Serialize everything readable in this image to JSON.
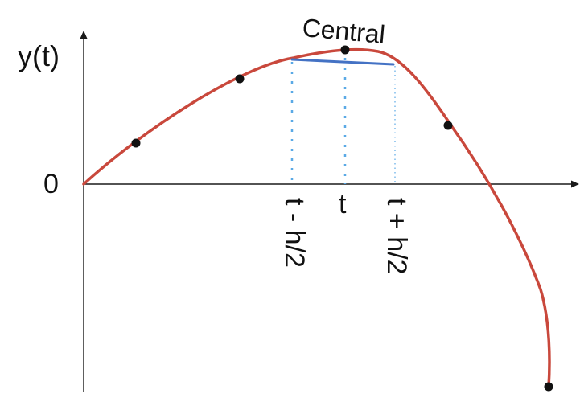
{
  "labels": {
    "y_axis": "y(t)",
    "origin": "0",
    "title": "Central",
    "t_left": "t - h/2",
    "t_mid": "t",
    "t_right": "t + h/2"
  },
  "colors": {
    "curve": "#c9483c",
    "chord": "#4472c4",
    "guides": "#5aa9e6",
    "points": "#111111",
    "axes": "#1a1a1a"
  }
}
